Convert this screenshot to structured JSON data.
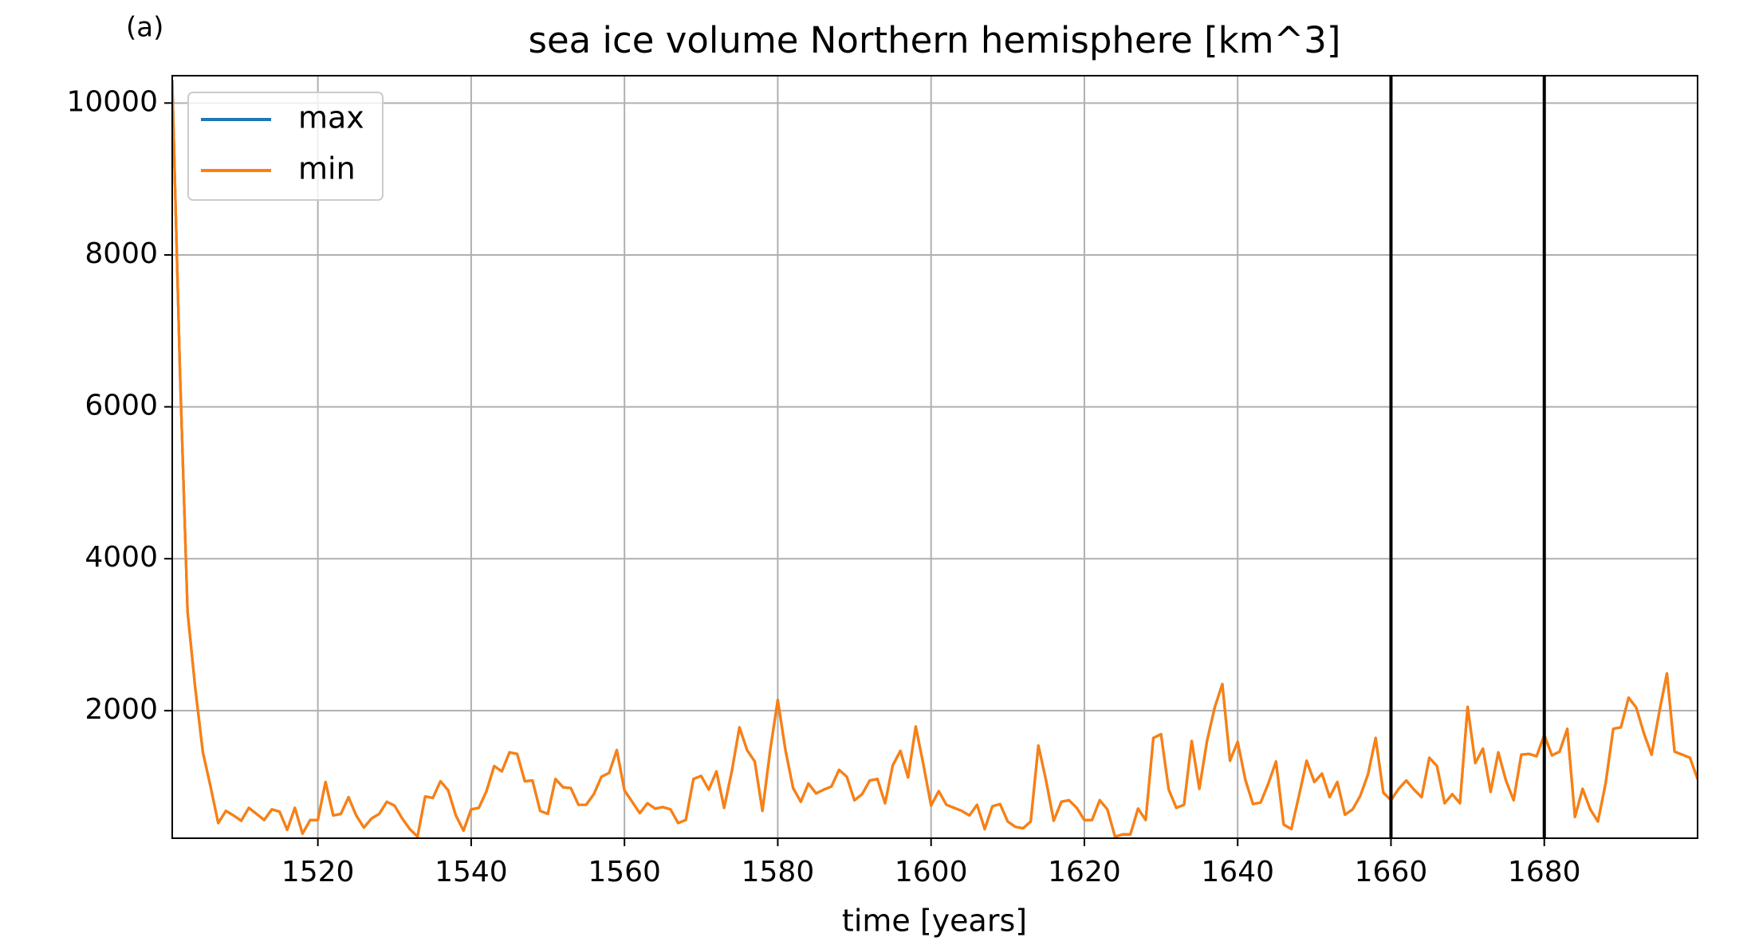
{
  "chart_data": {
    "type": "line",
    "panel_label": "(a)",
    "title": "sea ice volume Northern hemisphere [km^3]",
    "x_label": "time [years]",
    "x": [
      1501,
      1502,
      1503,
      1504,
      1505,
      1506,
      1507,
      1508,
      1509,
      1510,
      1511,
      1512,
      1513,
      1514,
      1515,
      1516,
      1517,
      1518,
      1519,
      1520,
      1521,
      1522,
      1523,
      1524,
      1525,
      1526,
      1527,
      1528,
      1529,
      1530,
      1531,
      1532,
      1533,
      1534,
      1535,
      1536,
      1537,
      1538,
      1539,
      1540,
      1541,
      1542,
      1543,
      1544,
      1545,
      1546,
      1547,
      1548,
      1549,
      1550,
      1551,
      1552,
      1553,
      1554,
      1555,
      1556,
      1557,
      1558,
      1559,
      1560,
      1561,
      1562,
      1563,
      1564,
      1565,
      1566,
      1567,
      1568,
      1569,
      1570,
      1571,
      1572,
      1573,
      1574,
      1575,
      1576,
      1577,
      1578,
      1579,
      1580,
      1581,
      1582,
      1583,
      1584,
      1585,
      1586,
      1587,
      1588,
      1589,
      1590,
      1591,
      1592,
      1593,
      1594,
      1595,
      1596,
      1597,
      1598,
      1599,
      1600,
      1601,
      1602,
      1603,
      1604,
      1605,
      1606,
      1607,
      1608,
      1609,
      1610,
      1611,
      1612,
      1613,
      1614,
      1615,
      1616,
      1617,
      1618,
      1619,
      1620,
      1621,
      1622,
      1623,
      1624,
      1625,
      1626,
      1627,
      1628,
      1629,
      1630,
      1631,
      1632,
      1633,
      1634,
      1635,
      1636,
      1637,
      1638,
      1639,
      1640,
      1641,
      1642,
      1643,
      1644,
      1645,
      1646,
      1647,
      1648,
      1649,
      1650,
      1651,
      1652,
      1653,
      1654,
      1655,
      1656,
      1657,
      1658,
      1659,
      1660,
      1661,
      1662,
      1663,
      1664,
      1665,
      1666,
      1667,
      1668,
      1669,
      1670,
      1671,
      1672,
      1673,
      1674,
      1675,
      1676,
      1677,
      1678,
      1679,
      1680,
      1681,
      1682,
      1683,
      1684,
      1685,
      1686,
      1687,
      1688,
      1689,
      1690,
      1691,
      1692,
      1693,
      1694,
      1695,
      1696,
      1697,
      1698,
      1699,
      1700
    ],
    "series": [
      {
        "name": "max",
        "color": "#1f77b4",
        "values": [
          10300,
          6500,
          3300,
          2300,
          1450,
          1000,
          520,
          680,
          620,
          550,
          720,
          640,
          560,
          700,
          670,
          430,
          720,
          380,
          560,
          560,
          1060,
          620,
          640,
          860,
          620,
          460,
          580,
          640,
          800,
          750,
          580,
          440,
          340,
          870,
          850,
          1070,
          950,
          620,
          420,
          700,
          720,
          940,
          1270,
          1200,
          1450,
          1430,
          1070,
          1080,
          680,
          640,
          1100,
          990,
          980,
          760,
          760,
          900,
          1130,
          1180,
          1480,
          950,
          800,
          650,
          780,
          710,
          730,
          700,
          520,
          560,
          1100,
          1140,
          960,
          1200,
          720,
          1200,
          1780,
          1480,
          1330,
          680,
          1470,
          2140,
          1480,
          980,
          800,
          1040,
          910,
          960,
          1000,
          1220,
          1130,
          820,
          900,
          1080,
          1100,
          780,
          1280,
          1470,
          1120,
          1790,
          1290,
          750,
          940,
          760,
          720,
          680,
          620,
          760,
          440,
          740,
          770,
          540,
          470,
          450,
          540,
          1540,
          1080,
          550,
          800,
          820,
          720,
          560,
          560,
          820,
          700,
          340,
          370,
          370,
          710,
          560,
          1640,
          1690,
          960,
          720,
          760,
          1600,
          970,
          1600,
          2040,
          2350,
          1340,
          1590,
          1090,
          770,
          790,
          1040,
          1330,
          500,
          440,
          880,
          1340,
          1060,
          1170,
          860,
          1060,
          630,
          700,
          880,
          1160,
          1640,
          920,
          820,
          970,
          1080,
          960,
          860,
          1380,
          1270,
          780,
          900,
          780,
          2050,
          1310,
          1500,
          930,
          1450,
          1080,
          820,
          1420,
          1430,
          1400,
          1680,
          1410,
          1460,
          1760,
          600,
          970,
          700,
          540,
          1040,
          1760,
          1780,
          2170,
          2040,
          1700,
          1420,
          1980,
          2490,
          1460,
          1420,
          1380,
          1100
        ]
      },
      {
        "name": "min",
        "color": "#ff7f0e",
        "values": [
          10300,
          6500,
          3300,
          2300,
          1450,
          1000,
          520,
          680,
          620,
          550,
          720,
          640,
          560,
          700,
          670,
          430,
          720,
          380,
          560,
          560,
          1060,
          620,
          640,
          860,
          620,
          460,
          580,
          640,
          800,
          750,
          580,
          440,
          340,
          870,
          850,
          1070,
          950,
          620,
          420,
          700,
          720,
          940,
          1270,
          1200,
          1450,
          1430,
          1070,
          1080,
          680,
          640,
          1100,
          990,
          980,
          760,
          760,
          900,
          1130,
          1180,
          1480,
          950,
          800,
          650,
          780,
          710,
          730,
          700,
          520,
          560,
          1100,
          1140,
          960,
          1200,
          720,
          1200,
          1780,
          1480,
          1330,
          680,
          1470,
          2140,
          1480,
          980,
          800,
          1040,
          910,
          960,
          1000,
          1220,
          1130,
          820,
          900,
          1080,
          1100,
          780,
          1280,
          1470,
          1120,
          1790,
          1290,
          750,
          940,
          760,
          720,
          680,
          620,
          760,
          440,
          740,
          770,
          540,
          470,
          450,
          540,
          1540,
          1080,
          550,
          800,
          820,
          720,
          560,
          560,
          820,
          700,
          340,
          370,
          370,
          710,
          560,
          1640,
          1690,
          960,
          720,
          760,
          1600,
          970,
          1600,
          2040,
          2350,
          1340,
          1590,
          1090,
          770,
          790,
          1040,
          1330,
          500,
          440,
          880,
          1340,
          1060,
          1170,
          860,
          1060,
          630,
          700,
          880,
          1160,
          1640,
          920,
          820,
          970,
          1080,
          960,
          860,
          1380,
          1270,
          780,
          900,
          780,
          2050,
          1310,
          1500,
          930,
          1450,
          1080,
          820,
          1420,
          1430,
          1400,
          1680,
          1410,
          1460,
          1760,
          600,
          970,
          700,
          540,
          1040,
          1760,
          1780,
          2170,
          2040,
          1700,
          1420,
          1980,
          2490,
          1460,
          1420,
          1380,
          1100
        ]
      }
    ],
    "vlines": [
      1660,
      1680
    ],
    "vline_color": "#000000",
    "xlim": [
      1501,
      1700
    ],
    "ylim": [
      320,
      10360
    ],
    "xticks": [
      1520,
      1540,
      1560,
      1580,
      1600,
      1620,
      1640,
      1660,
      1680
    ],
    "yticks": [
      2000,
      4000,
      6000,
      8000,
      10000
    ],
    "grid": true,
    "legend_loc": "upper left"
  }
}
